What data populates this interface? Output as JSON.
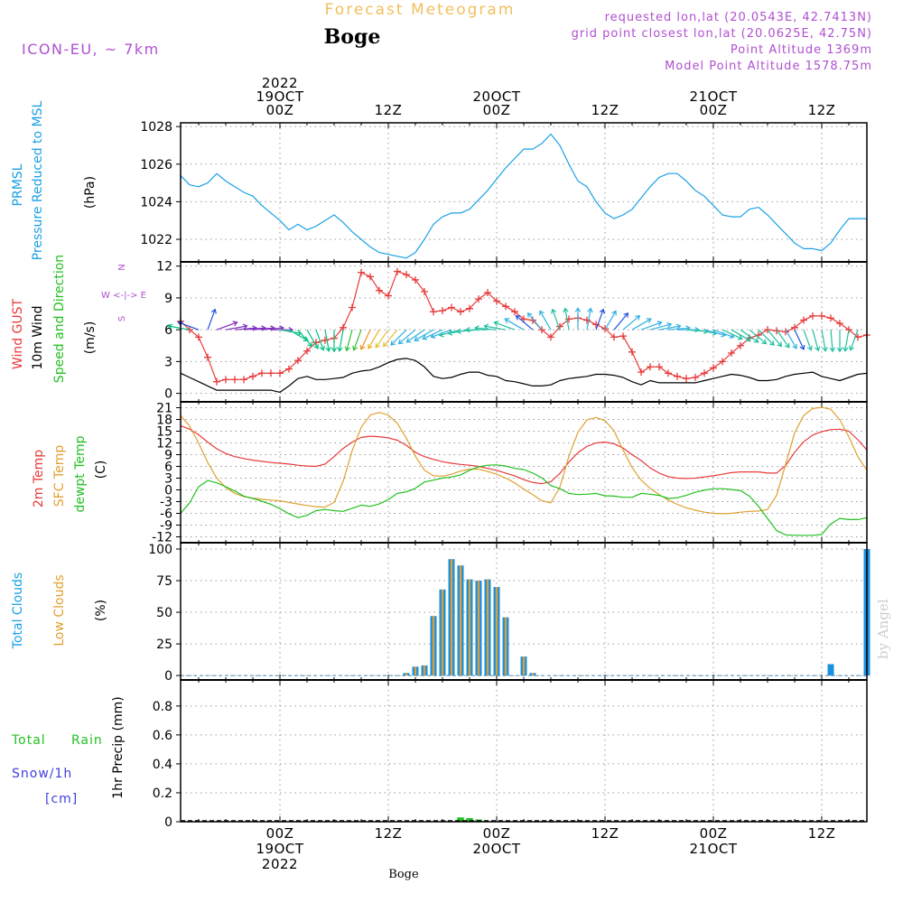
{
  "header": {
    "title": "Forecast Meteogram",
    "station": "Boge",
    "model": "ICON-EU, ~ 7km",
    "requested": "requested lon,lat (20.0543E, 42.7413N)",
    "grid_point": "grid point closest lon,lat (20.0625E, 42.75N)",
    "point_altitude": "Point Altitude 1369m",
    "model_altitude": "Model Point Altitude 1578.75m",
    "footer_station": "Boge",
    "watermark": "by Angel"
  },
  "colors": {
    "pressure": "#1aa0e6",
    "gust": "#e83a3a",
    "wind": "#000000",
    "t2m": "#e83a3a",
    "sfc": "#e0a030",
    "dewpt": "#22c020",
    "total_clouds": "#1a90e0",
    "low_clouds": "#e0a030",
    "rain": "#22c020",
    "snow": "#4040e0",
    "purple": "#b050d0",
    "title_orange": "#f0c060"
  },
  "time_axis": {
    "top_labels": [
      {
        "t": 0,
        "lines": [
          "2022",
          "19OCT",
          "00Z"
        ]
      },
      {
        "t": 12,
        "lines": [
          "12Z"
        ]
      },
      {
        "t": 24,
        "lines": [
          "20OCT",
          "00Z"
        ]
      },
      {
        "t": 36,
        "lines": [
          "12Z"
        ]
      },
      {
        "t": 48,
        "lines": [
          "21OCT",
          "00Z"
        ]
      },
      {
        "t": 60,
        "lines": [
          "12Z"
        ]
      }
    ],
    "bottom_labels": [
      {
        "t": 0,
        "lines": [
          "00Z",
          "19OCT",
          "2022"
        ]
      },
      {
        "t": 12,
        "lines": [
          "12Z"
        ]
      },
      {
        "t": 24,
        "lines": [
          "00Z",
          "20OCT"
        ]
      },
      {
        "t": 36,
        "lines": [
          "12Z"
        ]
      },
      {
        "t": 48,
        "lines": [
          "00Z",
          "21OCT"
        ]
      },
      {
        "t": 60,
        "lines": [
          "12Z"
        ]
      }
    ]
  },
  "panel_labels": {
    "pressure": [
      "PRMSL",
      "Pressure Reduced to MSL",
      "(hPa)"
    ],
    "wind": [
      "Wind GUST",
      "10m Wind",
      "Speed and Direction",
      "(m/s)"
    ],
    "compass": [
      "N",
      "W <-|-> E",
      "S"
    ],
    "temp": [
      "2m Temp",
      "SFC Temp",
      "dewpt Temp",
      "(C)"
    ],
    "clouds": [
      "Total Clouds",
      "Low Clouds",
      "(%)"
    ],
    "precip": [
      "Total",
      "Rain",
      "Snow/1h",
      "[cm]",
      "1hr Precip (mm)"
    ]
  },
  "chart_data": [
    {
      "type": "line",
      "title": "",
      "ylabel": "(hPa)",
      "ylim": [
        1020.8,
        1028.2
      ],
      "yticks": [
        1022,
        1024,
        1026,
        1028
      ],
      "xlim": [
        -11,
        65
      ],
      "x": [
        -11,
        -10,
        -9,
        -8,
        -7,
        -6,
        -5,
        -4,
        -3,
        -2,
        -1,
        0,
        1,
        2,
        3,
        4,
        5,
        6,
        7,
        8,
        9,
        10,
        11,
        12,
        13,
        14,
        15,
        16,
        17,
        18,
        19,
        20,
        21,
        22,
        23,
        24,
        25,
        26,
        27,
        28,
        29,
        30,
        31,
        32,
        33,
        34,
        35,
        36,
        37,
        38,
        39,
        40,
        41,
        42,
        43,
        44,
        45,
        46,
        47,
        48,
        49,
        50,
        51,
        52,
        53,
        54,
        55,
        56,
        57,
        58,
        59,
        60,
        61,
        62,
        63,
        64,
        65
      ],
      "series": [
        {
          "name": "PRMSL",
          "values": [
            1025.4,
            1024.9,
            1024.8,
            1025.0,
            1025.5,
            1025.1,
            1024.8,
            1024.5,
            1024.3,
            1023.8,
            1023.4,
            1023.0,
            1022.5,
            1022.8,
            1022.5,
            1022.7,
            1023.0,
            1023.3,
            1022.9,
            1022.4,
            1022.0,
            1021.6,
            1021.3,
            1021.2,
            1021.1,
            1021.0,
            1021.3,
            1022.0,
            1022.8,
            1023.2,
            1023.4,
            1023.4,
            1023.6,
            1024.1,
            1024.6,
            1025.2,
            1025.8,
            1026.3,
            1026.8,
            1026.8,
            1027.1,
            1027.6,
            1027.0,
            1026.0,
            1025.1,
            1024.8,
            1024.0,
            1023.4,
            1023.1,
            1023.3,
            1023.6,
            1024.2,
            1024.8,
            1025.3,
            1025.5,
            1025.5,
            1025.1,
            1024.6,
            1024.3,
            1023.8,
            1023.3,
            1023.2,
            1023.2,
            1023.6,
            1023.7,
            1023.3,
            1022.8,
            1022.3,
            1021.8,
            1021.5,
            1021.5,
            1021.4,
            1021.8,
            1022.5,
            1023.1,
            1023.1,
            1023.1
          ]
        }
      ]
    },
    {
      "type": "line",
      "title": "",
      "ylabel": "(m/s)",
      "ylim": [
        -0.8,
        12.4
      ],
      "yticks": [
        0,
        3,
        6,
        9,
        12
      ],
      "xlim": [
        -11,
        65
      ],
      "x": [
        -11,
        -10,
        -9,
        -8,
        -7,
        -6,
        -5,
        -4,
        -3,
        -2,
        -1,
        0,
        1,
        2,
        3,
        4,
        5,
        6,
        7,
        8,
        9,
        10,
        11,
        12,
        13,
        14,
        15,
        16,
        17,
        18,
        19,
        20,
        21,
        22,
        23,
        24,
        25,
        26,
        27,
        28,
        29,
        30,
        31,
        32,
        33,
        34,
        35,
        36,
        37,
        38,
        39,
        40,
        41,
        42,
        43,
        44,
        45,
        46,
        47,
        48,
        49,
        50,
        51,
        52,
        53,
        54,
        55,
        56,
        57,
        58,
        59,
        60,
        61,
        62,
        63,
        64,
        65
      ],
      "series": [
        {
          "name": "Wind GUST",
          "values": [
            6.8,
            6.0,
            5.3,
            3.4,
            1.1,
            1.3,
            1.3,
            1.3,
            1.6,
            1.9,
            1.9,
            1.9,
            2.3,
            3.1,
            4.0,
            4.8,
            5.0,
            5.2,
            6.2,
            8.1,
            11.4,
            11.0,
            9.7,
            9.2,
            11.5,
            11.2,
            10.7,
            9.6,
            7.7,
            7.8,
            8.1,
            7.7,
            8.0,
            8.9,
            9.5,
            8.7,
            8.2,
            7.7,
            7.0,
            6.9,
            6.0,
            5.3,
            6.3,
            7.0,
            7.1,
            6.9,
            6.5,
            6.1,
            5.3,
            5.4,
            3.9,
            2.0,
            2.5,
            2.5,
            1.9,
            1.6,
            1.4,
            1.5,
            1.9,
            2.4,
            3.0,
            3.8,
            4.5,
            5.2,
            5.5,
            6.0,
            5.9,
            5.8,
            6.2,
            6.9,
            7.3,
            7.3,
            7.1,
            6.6,
            6.0,
            5.3,
            5.5
          ]
        },
        {
          "name": "10m Wind",
          "values": [
            1.9,
            1.5,
            1.1,
            0.7,
            0.3,
            0.3,
            0.3,
            0.3,
            0.3,
            0.3,
            0.3,
            0.1,
            0.7,
            1.4,
            1.6,
            1.3,
            1.3,
            1.4,
            1.5,
            1.9,
            2.1,
            2.2,
            2.5,
            2.9,
            3.2,
            3.3,
            3.1,
            2.5,
            1.6,
            1.4,
            1.5,
            1.8,
            2.0,
            2.0,
            1.7,
            1.6,
            1.2,
            1.1,
            0.9,
            0.7,
            0.7,
            0.8,
            1.2,
            1.4,
            1.5,
            1.6,
            1.8,
            1.8,
            1.7,
            1.5,
            1.1,
            0.8,
            1.2,
            1.0,
            1.0,
            1.0,
            1.0,
            1.0,
            1.2,
            1.4,
            1.6,
            1.8,
            1.7,
            1.5,
            1.2,
            1.2,
            1.3,
            1.6,
            1.8,
            1.9,
            2.0,
            1.6,
            1.4,
            1.2,
            1.5,
            1.8,
            1.9
          ]
        }
      ]
    },
    {
      "type": "line",
      "title": "",
      "ylabel": "(C)",
      "ylim": [
        -13.5,
        22.5
      ],
      "yticks": [
        -12,
        -9,
        -6,
        -3,
        0,
        3,
        6,
        9,
        12,
        15,
        18,
        21
      ],
      "xlim": [
        -11,
        65
      ],
      "x": [
        -11,
        -10,
        -9,
        -8,
        -7,
        -6,
        -5,
        -4,
        -3,
        -2,
        -1,
        0,
        1,
        2,
        3,
        4,
        5,
        6,
        7,
        8,
        9,
        10,
        11,
        12,
        13,
        14,
        15,
        16,
        17,
        18,
        19,
        20,
        21,
        22,
        23,
        24,
        25,
        26,
        27,
        28,
        29,
        30,
        31,
        32,
        33,
        34,
        35,
        36,
        37,
        38,
        39,
        40,
        41,
        42,
        43,
        44,
        45,
        46,
        47,
        48,
        49,
        50,
        51,
        52,
        53,
        54,
        55,
        56,
        57,
        58,
        59,
        60,
        61,
        62,
        63,
        64,
        65
      ],
      "series": [
        {
          "name": "2m Temp",
          "values": [
            16.4,
            15.5,
            14.1,
            12.2,
            10.5,
            9.3,
            8.5,
            8.0,
            7.6,
            7.3,
            7.0,
            6.8,
            6.6,
            6.3,
            6.1,
            6.0,
            6.6,
            8.5,
            10.6,
            12.2,
            13.4,
            13.7,
            13.6,
            13.3,
            12.7,
            11.4,
            9.6,
            8.5,
            7.8,
            7.2,
            6.8,
            6.5,
            6.3,
            6.0,
            5.5,
            5.0,
            4.3,
            3.6,
            2.6,
            1.9,
            1.6,
            2.1,
            4.2,
            7.1,
            9.5,
            11.1,
            12.0,
            12.2,
            11.8,
            10.7,
            9.0,
            7.5,
            5.6,
            4.3,
            3.4,
            3.0,
            2.9,
            3.0,
            3.3,
            3.6,
            4.0,
            4.4,
            4.6,
            4.6,
            4.6,
            4.3,
            4.3,
            6.2,
            9.6,
            12.3,
            14.0,
            14.9,
            15.4,
            15.5,
            15.0,
            12.8,
            10.2
          ]
        },
        {
          "name": "SFC Temp",
          "values": [
            19.0,
            16.3,
            11.9,
            7.0,
            3.0,
            0.6,
            -0.9,
            -1.7,
            -2.1,
            -2.4,
            -2.6,
            -2.8,
            -3.2,
            -3.6,
            -4.0,
            -4.3,
            -4.4,
            -3.2,
            2.2,
            10.0,
            16.0,
            19.1,
            19.8,
            19.1,
            17.0,
            13.2,
            8.6,
            5.0,
            3.6,
            3.5,
            4.0,
            4.8,
            5.3,
            5.3,
            4.7,
            4.0,
            3.0,
            1.8,
            0.2,
            -1.2,
            -2.8,
            -3.3,
            0.7,
            8.6,
            14.7,
            17.9,
            18.5,
            17.7,
            15.1,
            10.2,
            5.7,
            2.5,
            0.4,
            -1.2,
            -2.6,
            -3.7,
            -4.6,
            -5.2,
            -5.7,
            -6.0,
            -6.1,
            -6.0,
            -5.7,
            -5.5,
            -5.4,
            -5.0,
            -1.4,
            6.5,
            14.6,
            19.0,
            20.8,
            21.1,
            20.6,
            17.9,
            13.6,
            8.5,
            5.0
          ]
        },
        {
          "name": "dewpt Temp",
          "values": [
            -6.0,
            -3.3,
            0.8,
            2.4,
            1.8,
            0.8,
            -0.3,
            -1.6,
            -2.2,
            -2.9,
            -3.7,
            -4.8,
            -6.1,
            -7.1,
            -6.5,
            -5.3,
            -5.0,
            -5.3,
            -5.5,
            -4.7,
            -3.9,
            -4.2,
            -3.6,
            -2.5,
            -0.9,
            -0.5,
            0.4,
            2.0,
            2.5,
            3.0,
            3.3,
            3.8,
            5.0,
            5.9,
            6.3,
            6.4,
            6.1,
            5.5,
            5.2,
            4.3,
            3.1,
            1.1,
            0.3,
            -0.9,
            -1.2,
            -1.1,
            -0.9,
            -1.5,
            -1.6,
            -1.9,
            -1.9,
            -0.9,
            -1.1,
            -1.4,
            -2.2,
            -2.0,
            -1.4,
            -0.6,
            -0.1,
            0.3,
            0.3,
            0.1,
            -0.2,
            -1.6,
            -4.2,
            -7.3,
            -10.4,
            -11.5,
            -11.6,
            -11.6,
            -11.6,
            -11.4,
            -8.7,
            -7.3,
            -7.6,
            -7.6,
            -7.1
          ]
        }
      ]
    },
    {
      "type": "bar",
      "title": "",
      "ylabel": "(%)",
      "ylim": [
        -3.5,
        105
      ],
      "yticks": [
        0,
        25,
        50,
        75,
        100
      ],
      "xlim": [
        -11,
        65
      ],
      "x": [
        14,
        15,
        16,
        17,
        18,
        19,
        20,
        21,
        22,
        23,
        24,
        25,
        26,
        27,
        28,
        61,
        65
      ],
      "series": [
        {
          "name": "Total Clouds",
          "values": [
            2,
            7,
            8,
            47,
            68,
            92,
            87,
            76,
            75,
            76,
            70,
            46,
            0,
            15,
            2,
            9,
            100
          ]
        },
        {
          "name": "Low Clouds",
          "values": [
            2,
            7,
            8,
            47,
            68,
            92,
            87,
            76,
            75,
            76,
            70,
            46,
            0,
            15,
            2,
            0,
            0
          ]
        }
      ]
    },
    {
      "type": "bar",
      "title": "",
      "ylabel": "1hr Precip (mm)",
      "ylim": [
        0,
        0.98
      ],
      "yticks": [
        0,
        0.2,
        0.4,
        0.6,
        0.8
      ],
      "xlim": [
        -11,
        65
      ],
      "x": [
        20,
        21,
        22
      ],
      "series": [
        {
          "name": "Total Rain",
          "values": [
            0.03,
            0.025,
            0.015
          ]
        },
        {
          "name": "Snow/1h",
          "values": [
            0,
            0,
            0
          ]
        }
      ]
    }
  ],
  "wind_barbs": {
    "t": [
      -10,
      -9,
      -8,
      -7,
      -6,
      -5,
      -4,
      -3,
      -2,
      -1,
      0,
      1,
      2,
      3,
      4,
      5,
      6,
      7,
      8,
      9,
      10,
      11,
      12,
      13,
      14,
      15,
      16,
      17,
      18,
      19,
      20,
      21,
      22,
      23,
      24,
      25,
      26,
      27,
      28,
      29,
      30,
      31,
      32,
      33,
      34,
      35,
      36,
      37,
      38,
      39,
      40,
      41,
      42,
      43,
      44,
      45,
      46,
      47,
      48,
      49,
      50,
      51,
      52,
      53,
      54,
      55,
      56,
      57,
      58,
      59,
      60,
      61,
      62,
      63,
      64
    ],
    "direction_deg": [
      100,
      110,
      200,
      250,
      260,
      265,
      265,
      265,
      265,
      270,
      280,
      300,
      320,
      330,
      340,
      350,
      0,
      10,
      15,
      20,
      25,
      30,
      35,
      40,
      45,
      50,
      55,
      60,
      65,
      70,
      75,
      80,
      85,
      90,
      95,
      100,
      110,
      120,
      130,
      140,
      150,
      160,
      170,
      180,
      190,
      200,
      210,
      220,
      230,
      240,
      250,
      255,
      260,
      265,
      270,
      275,
      280,
      285,
      290,
      295,
      300,
      305,
      310,
      315,
      320,
      325,
      330,
      335,
      340,
      345,
      350,
      355,
      0,
      10,
      20
    ],
    "colors": [
      "#00c080",
      "#2050e0",
      "#2050e0",
      "#8030c0",
      "#8030c0",
      "#8030c0",
      "#8030c0",
      "#8030c0",
      "#8030c0",
      "#8030c0",
      "#00c080",
      "#00c080",
      "#00c080",
      "#00c080",
      "#00c080",
      "#00c080",
      "#00c080",
      "#00c080",
      "#30c030",
      "#30c030",
      "#f09020",
      "#f0b020",
      "#e0c040",
      "#e0c040",
      "#30b0e0",
      "#30b0e0",
      "#30b0e0",
      "#30b0e0",
      "#30b0e0",
      "#30b0e0",
      "#20c0a0",
      "#20c0a0",
      "#20c0a0",
      "#20c0a0",
      "#20c0a0",
      "#20c0a0",
      "#20c0a0",
      "#30b0e0",
      "#2050e0",
      "#30b0e0",
      "#30b0e0",
      "#20c0a0",
      "#20c0a0",
      "#30b0e0",
      "#30b0e0",
      "#2050e0",
      "#30b0e0",
      "#2050e0",
      "#30b0e0",
      "#30b0e0",
      "#30b0e0",
      "#30b0e0",
      "#30b0e0",
      "#30b0e0",
      "#30b0e0",
      "#20c0a0",
      "#20c0a0",
      "#30b0e0",
      "#30b0e0",
      "#20c0a0",
      "#20c0a0",
      "#20c0a0",
      "#20c0a0",
      "#20c0a0",
      "#20c0a0",
      "#20c0a0",
      "#30b0e0",
      "#2050e0",
      "#20c0a0",
      "#20c0a0",
      "#20c0a0",
      "#20c0a0",
      "#20c0a0",
      "#20c0a0",
      "#20c0a0"
    ]
  }
}
